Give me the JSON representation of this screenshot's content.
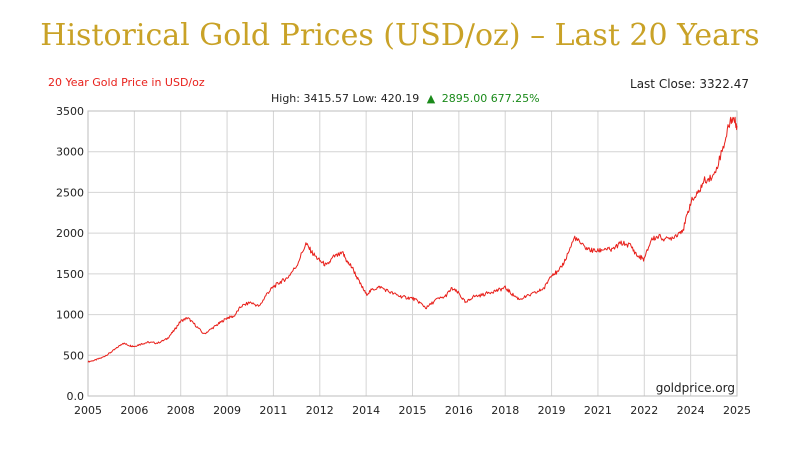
{
  "page": {
    "title": "Historical Gold Prices (USD/oz) – Last 20 Years"
  },
  "chart_data": {
    "type": "line",
    "subtitle": "20 Year Gold Price in USD/oz",
    "last_close_text": "Last Close: 3322.47",
    "stats": {
      "high_low_text": "High: 3415.57 Low: 420.19",
      "up_arrow": "▲",
      "change_text": "2895.00 677.25%"
    },
    "watermark": "goldprice.org",
    "xlabel": "",
    "ylabel": "",
    "x_ticks": [
      "2005",
      "2006",
      "2008",
      "2009",
      "2011",
      "2012",
      "2014",
      "2015",
      "2016",
      "2018",
      "2019",
      "2021",
      "2022",
      "2024",
      "2025"
    ],
    "y_ticks": [
      "0.0",
      "500",
      "1000",
      "1500",
      "2000",
      "2500",
      "3000",
      "3500"
    ],
    "y_tick_values": [
      0,
      500,
      1000,
      1500,
      2000,
      2500,
      3000,
      3500
    ],
    "ylim": [
      0,
      3500
    ],
    "xlim": [
      0,
      14
    ],
    "grid": true,
    "series": [
      {
        "color": "#e8201b",
        "x": [
          0,
          0.15,
          0.3,
          0.45,
          0.6,
          0.75,
          0.9,
          1,
          1.15,
          1.3,
          1.5,
          1.7,
          1.85,
          2,
          2.15,
          2.3,
          2.5,
          2.7,
          2.85,
          3,
          3.15,
          3.3,
          3.5,
          3.7,
          3.85,
          4,
          4.15,
          4.3,
          4.5,
          4.7,
          4.85,
          5,
          5.15,
          5.3,
          5.5,
          5.6,
          5.7,
          5.85,
          6,
          6.15,
          6.3,
          6.5,
          6.7,
          6.85,
          7,
          7.15,
          7.3,
          7.5,
          7.7,
          7.85,
          8,
          8.15,
          8.3,
          8.5,
          8.7,
          8.85,
          9,
          9.15,
          9.3,
          9.5,
          9.7,
          9.85,
          10,
          10.15,
          10.3,
          10.5,
          10.7,
          10.85,
          11,
          11.15,
          11.3,
          11.5,
          11.7,
          11.85,
          12,
          12.15,
          12.3,
          12.5,
          12.7,
          12.85,
          13,
          13.15,
          13.3,
          13.5,
          13.7,
          13.85,
          13.92,
          14
        ],
        "y": [
          420,
          440,
          470,
          520,
          580,
          650,
          620,
          610,
          640,
          660,
          650,
          700,
          800,
          920,
          960,
          880,
          760,
          840,
          900,
          960,
          980,
          1100,
          1150,
          1100,
          1250,
          1340,
          1400,
          1450,
          1600,
          1870,
          1750,
          1660,
          1600,
          1710,
          1750,
          1640,
          1580,
          1400,
          1250,
          1310,
          1340,
          1280,
          1230,
          1210,
          1200,
          1150,
          1080,
          1180,
          1220,
          1320,
          1260,
          1140,
          1220,
          1240,
          1280,
          1300,
          1330,
          1250,
          1190,
          1230,
          1280,
          1330,
          1500,
          1520,
          1680,
          1950,
          1830,
          1790,
          1780,
          1810,
          1790,
          1880,
          1850,
          1720,
          1680,
          1920,
          1960,
          1920,
          1980,
          2060,
          2380,
          2480,
          2650,
          2700,
          3050,
          3380,
          3410,
          3320
        ]
      }
    ]
  }
}
